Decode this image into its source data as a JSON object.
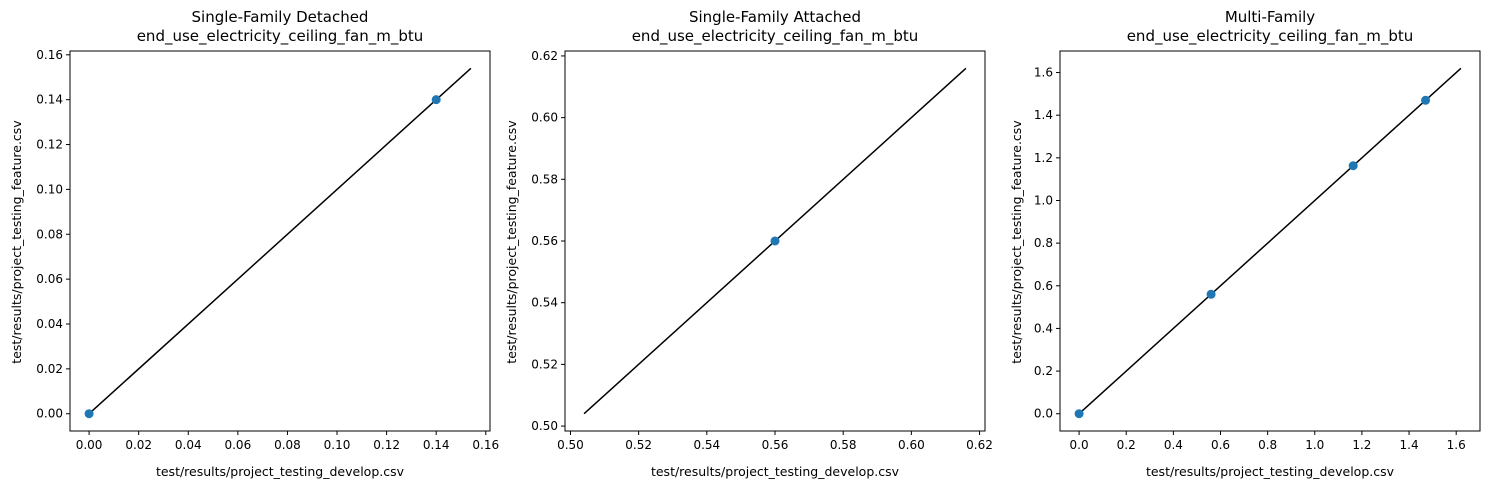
{
  "colors": {
    "point": "#1f77b4",
    "line": "#000000",
    "axes": "#000000",
    "background": "#ffffff"
  },
  "chart_data": [
    {
      "type": "scatter",
      "title": [
        "Single-Family Detached",
        "end_use_electricity_ceiling_fan_m_btu"
      ],
      "xlabel": "test/results/project_testing_develop.csv",
      "ylabel": "test/results/project_testing_feature.csv",
      "xlim": [
        -0.0077,
        0.1617
      ],
      "ylim": [
        -0.0077,
        0.1617
      ],
      "xticks": [
        0.0,
        0.02,
        0.04,
        0.06,
        0.08,
        0.1,
        0.12,
        0.14,
        0.16
      ],
      "yticks": [
        0.0,
        0.02,
        0.04,
        0.06,
        0.08,
        0.1,
        0.12,
        0.14,
        0.16
      ],
      "xtick_labels": [
        "0.00",
        "0.02",
        "0.04",
        "0.06",
        "0.08",
        "0.10",
        "0.12",
        "0.14",
        "0.16"
      ],
      "ytick_labels": [
        "0.00",
        "0.02",
        "0.04",
        "0.06",
        "0.08",
        "0.10",
        "0.12",
        "0.14",
        "0.16"
      ],
      "points": [
        [
          0.0,
          0.0
        ],
        [
          0.14,
          0.14
        ]
      ],
      "reference_line": [
        [
          0.0,
          0.0
        ],
        [
          0.154,
          0.154
        ]
      ],
      "grid": false,
      "legend": "none"
    },
    {
      "type": "scatter",
      "title": [
        "Single-Family Attached",
        "end_use_electricity_ceiling_fan_m_btu"
      ],
      "xlabel": "test/results/project_testing_develop.csv",
      "ylabel": "test/results/project_testing_feature.csv",
      "xlim": [
        0.4984,
        0.6216
      ],
      "ylim": [
        0.4984,
        0.6216
      ],
      "xticks": [
        0.5,
        0.52,
        0.54,
        0.56,
        0.58,
        0.6,
        0.62
      ],
      "yticks": [
        0.5,
        0.52,
        0.54,
        0.56,
        0.58,
        0.6,
        0.62
      ],
      "xtick_labels": [
        "0.50",
        "0.52",
        "0.54",
        "0.56",
        "0.58",
        "0.60",
        "0.62"
      ],
      "ytick_labels": [
        "0.50",
        "0.52",
        "0.54",
        "0.56",
        "0.58",
        "0.60",
        "0.62"
      ],
      "points": [
        [
          0.56,
          0.56
        ]
      ],
      "reference_line": [
        [
          0.504,
          0.504
        ],
        [
          0.616,
          0.616
        ]
      ],
      "grid": false,
      "legend": "none"
    },
    {
      "type": "scatter",
      "title": [
        "Multi-Family",
        "end_use_electricity_ceiling_fan_m_btu"
      ],
      "xlabel": "test/results/project_testing_develop.csv",
      "ylabel": "test/results/project_testing_feature.csv",
      "xlim": [
        -0.081,
        1.701
      ],
      "ylim": [
        -0.081,
        1.701
      ],
      "xticks": [
        0.0,
        0.2,
        0.4,
        0.6,
        0.8,
        1.0,
        1.2,
        1.4,
        1.6
      ],
      "yticks": [
        0.0,
        0.2,
        0.4,
        0.6,
        0.8,
        1.0,
        1.2,
        1.4,
        1.6
      ],
      "xtick_labels": [
        "0.0",
        "0.2",
        "0.4",
        "0.6",
        "0.8",
        "1.0",
        "1.2",
        "1.4",
        "1.6"
      ],
      "ytick_labels": [
        "0.0",
        "0.2",
        "0.4",
        "0.6",
        "0.8",
        "1.0",
        "1.2",
        "1.4",
        "1.6"
      ],
      "points": [
        [
          0.0,
          0.0
        ],
        [
          0.56,
          0.56
        ],
        [
          1.163,
          1.163
        ],
        [
          1.47,
          1.47
        ]
      ],
      "reference_line": [
        [
          0.0,
          0.0
        ],
        [
          1.62,
          1.62
        ]
      ],
      "grid": false,
      "legend": "none"
    }
  ]
}
